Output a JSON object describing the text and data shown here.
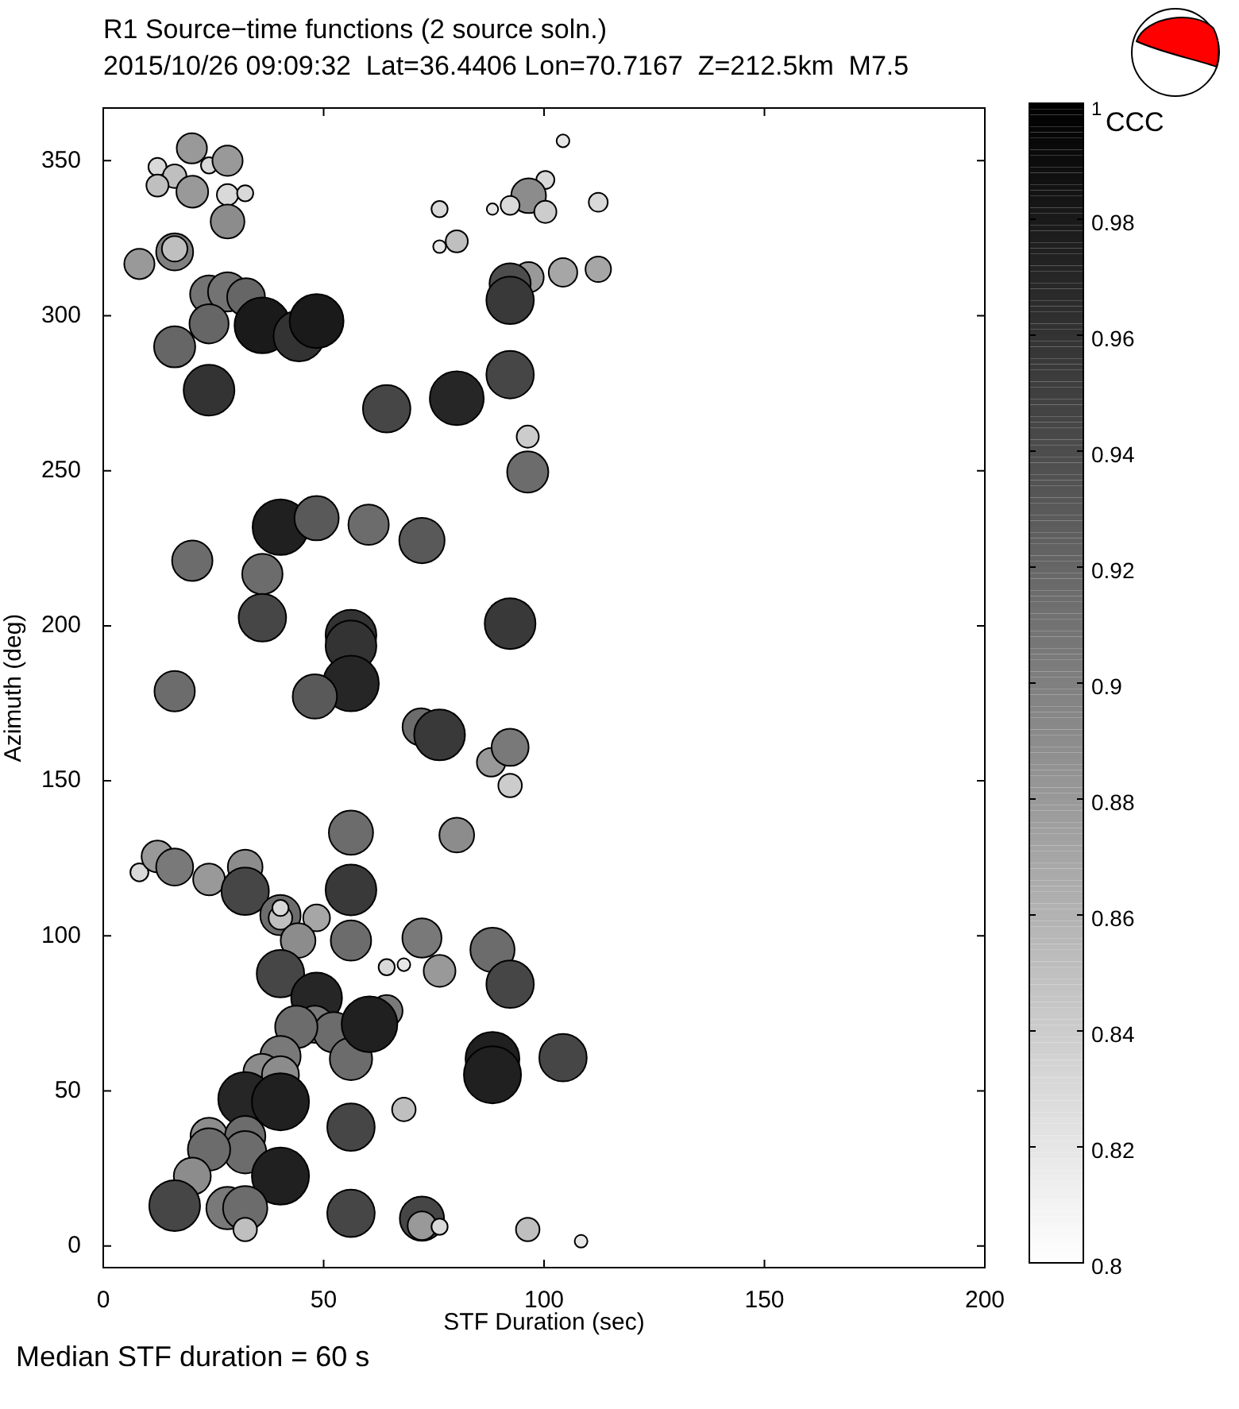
{
  "chart_data": {
    "type": "bubble",
    "title": "R1 Source−time functions (2 source soln.)",
    "subtitle": "2015/10/26 09:09:32  Lat=36.4406 Lon=70.7167  Z=212.5km  M7.5",
    "xlabel": "STF Duration (sec)",
    "ylabel": "Azimuth (deg)",
    "clabel": "CCC",
    "annotations": [
      "Median STF duration = 60 s"
    ],
    "xlim": [
      0,
      200
    ],
    "xticks": [
      0,
      50,
      100,
      150,
      200
    ],
    "ylim": [
      -7,
      367
    ],
    "yticks": [
      0,
      50,
      100,
      150,
      200,
      250,
      300,
      350
    ],
    "clim": [
      0.8,
      1
    ],
    "cticks": [
      0.8,
      0.82,
      0.84,
      0.86,
      0.88,
      0.9,
      0.92,
      0.94,
      0.96,
      0.98,
      1
    ],
    "grid": false,
    "legend": false,
    "marker": "circle",
    "x": [
      20.1,
      12.3,
      24,
      28.2,
      16.2,
      12.3,
      20.2,
      28.2,
      32.2,
      28.2,
      16.2,
      16.2,
      8.2,
      24,
      28.2,
      32.4,
      24,
      16.2,
      36.1,
      44.4,
      48.4,
      24,
      104.3,
      100.3,
      96.5,
      92.3,
      88.3,
      76.3,
      100.3,
      112.3,
      80.2,
      76.3,
      96.5,
      104.3,
      112.3,
      92.3,
      92.3,
      92.3,
      80.2,
      64.3,
      96.3,
      96.3,
      40.2,
      48.4,
      60.2,
      72.3,
      20.2,
      36.1,
      36.1,
      92.3,
      56.2,
      56.2,
      56.2,
      16.2,
      48,
      72.1,
      76.3,
      88,
      92.3,
      92.3,
      56.2,
      80.2,
      8.2,
      12.3,
      16.2,
      24,
      32.2,
      32.2,
      56.2,
      40.2,
      40.2,
      40.2,
      48.4,
      44.2,
      56.2,
      72.3,
      88.3,
      64.3,
      68.2,
      76.3,
      40.2,
      92.3,
      48.4,
      64.3,
      48,
      52.3,
      43.8,
      56.2,
      60.4,
      40.2,
      36,
      40.2,
      32.2,
      40.2,
      88.3,
      88.3,
      104.3,
      68.2,
      56.2,
      24,
      32.2,
      32.2,
      24,
      20.2,
      40.2,
      16.2,
      28.2,
      32.2,
      32.2,
      56.2,
      72.3,
      72.3,
      76.3,
      96.3,
      108.4
    ],
    "values": [
      354,
      348,
      348.5,
      350,
      345,
      342,
      340,
      339,
      339.5,
      330.4,
      320.6,
      321.6,
      316.7,
      306.9,
      307.7,
      306,
      297.4,
      290,
      296.9,
      293.5,
      298.3,
      276,
      356.4,
      343.8,
      338.7,
      335.6,
      334.4,
      334.4,
      333.5,
      336.6,
      324,
      322.3,
      312.4,
      314,
      315,
      310.3,
      305,
      281,
      273.4,
      270,
      261,
      249.6,
      231.8,
      234.7,
      232.6,
      227.5,
      221,
      216.7,
      202.6,
      200.7,
      197,
      193.5,
      181.4,
      178.9,
      177.2,
      167.4,
      164.8,
      156,
      160.8,
      148.5,
      133.3,
      132.5,
      120.5,
      125.6,
      122.2,
      118.2,
      122.2,
      114.4,
      114.8,
      106.7,
      105.8,
      109,
      105.8,
      98.5,
      98.5,
      99.3,
      95.5,
      89.9,
      90.7,
      88.7,
      87.8,
      84.4,
      80,
      75.8,
      71.5,
      68.9,
      70.6,
      60.3,
      71.5,
      61.2,
      56,
      55.2,
      47.4,
      46.5,
      60.3,
      55.2,
      60.7,
      44,
      38.3,
      35.4,
      35.4,
      30.2,
      31.1,
      22.5,
      22.5,
      13,
      12.2,
      12.2,
      5.3,
      10.5,
      8.8,
      6.5,
      6.2,
      5.3,
      1.5
    ],
    "cvalues": [
      0.88,
      0.83,
      0.83,
      0.88,
      0.85,
      0.85,
      0.88,
      0.83,
      0.83,
      0.89,
      0.9,
      0.85,
      0.88,
      0.91,
      0.91,
      0.92,
      0.92,
      0.92,
      0.98,
      0.96,
      0.98,
      0.96,
      0.82,
      0.83,
      0.89,
      0.83,
      0.82,
      0.83,
      0.84,
      0.83,
      0.85,
      0.82,
      0.88,
      0.87,
      0.87,
      0.94,
      0.955,
      0.945,
      0.97,
      0.945,
      0.84,
      0.915,
      0.975,
      0.93,
      0.915,
      0.93,
      0.915,
      0.915,
      0.945,
      0.955,
      0.96,
      0.96,
      0.97,
      0.915,
      0.93,
      0.915,
      0.955,
      0.88,
      0.905,
      0.84,
      0.915,
      0.89,
      0.83,
      0.88,
      0.905,
      0.88,
      0.89,
      0.945,
      0.955,
      0.915,
      0.85,
      0.83,
      0.87,
      0.89,
      0.915,
      0.905,
      0.915,
      0.83,
      0.82,
      0.88,
      0.945,
      0.945,
      0.97,
      0.905,
      0.905,
      0.915,
      0.915,
      0.915,
      0.975,
      0.905,
      0.89,
      0.89,
      0.97,
      0.975,
      0.975,
      0.975,
      0.945,
      0.85,
      0.945,
      0.89,
      0.915,
      0.915,
      0.915,
      0.89,
      0.975,
      0.945,
      0.905,
      0.915,
      0.85,
      0.945,
      0.945,
      0.88,
      0.83,
      0.85,
      0.82
    ],
    "sizes": [
      0.28,
      0.1,
      0.08,
      0.28,
      0.17,
      0.15,
      0.31,
      0.14,
      0.08,
      0.35,
      0.42,
      0.2,
      0.28,
      0.44,
      0.47,
      0.44,
      0.47,
      0.52,
      0.95,
      0.79,
      0.89,
      0.79,
      0.05,
      0.1,
      0.37,
      0.11,
      0.04,
      0.08,
      0.15,
      0.11,
      0.15,
      0.05,
      0.28,
      0.25,
      0.2,
      0.52,
      0.69,
      0.69,
      0.89,
      0.69,
      0.15,
      0.52,
      0.95,
      0.6,
      0.5,
      0.63,
      0.5,
      0.5,
      0.69,
      0.79,
      0.79,
      0.79,
      0.95,
      0.5,
      0.6,
      0.42,
      0.79,
      0.25,
      0.42,
      0.17,
      0.6,
      0.37,
      0.1,
      0.31,
      0.42,
      0.31,
      0.37,
      0.69,
      0.79,
      0.5,
      0.17,
      0.08,
      0.22,
      0.37,
      0.5,
      0.47,
      0.6,
      0.08,
      0.05,
      0.31,
      0.69,
      0.69,
      0.79,
      0.31,
      0.42,
      0.5,
      0.55,
      0.55,
      0.95,
      0.5,
      0.42,
      0.42,
      0.89,
      1,
      0.89,
      1,
      0.69,
      0.17,
      0.69,
      0.42,
      0.5,
      0.55,
      0.55,
      0.42,
      1,
      0.79,
      0.55,
      0.6,
      0.17,
      0.69,
      0.6,
      0.25,
      0.08,
      0.17,
      0.05
    ]
  }
}
